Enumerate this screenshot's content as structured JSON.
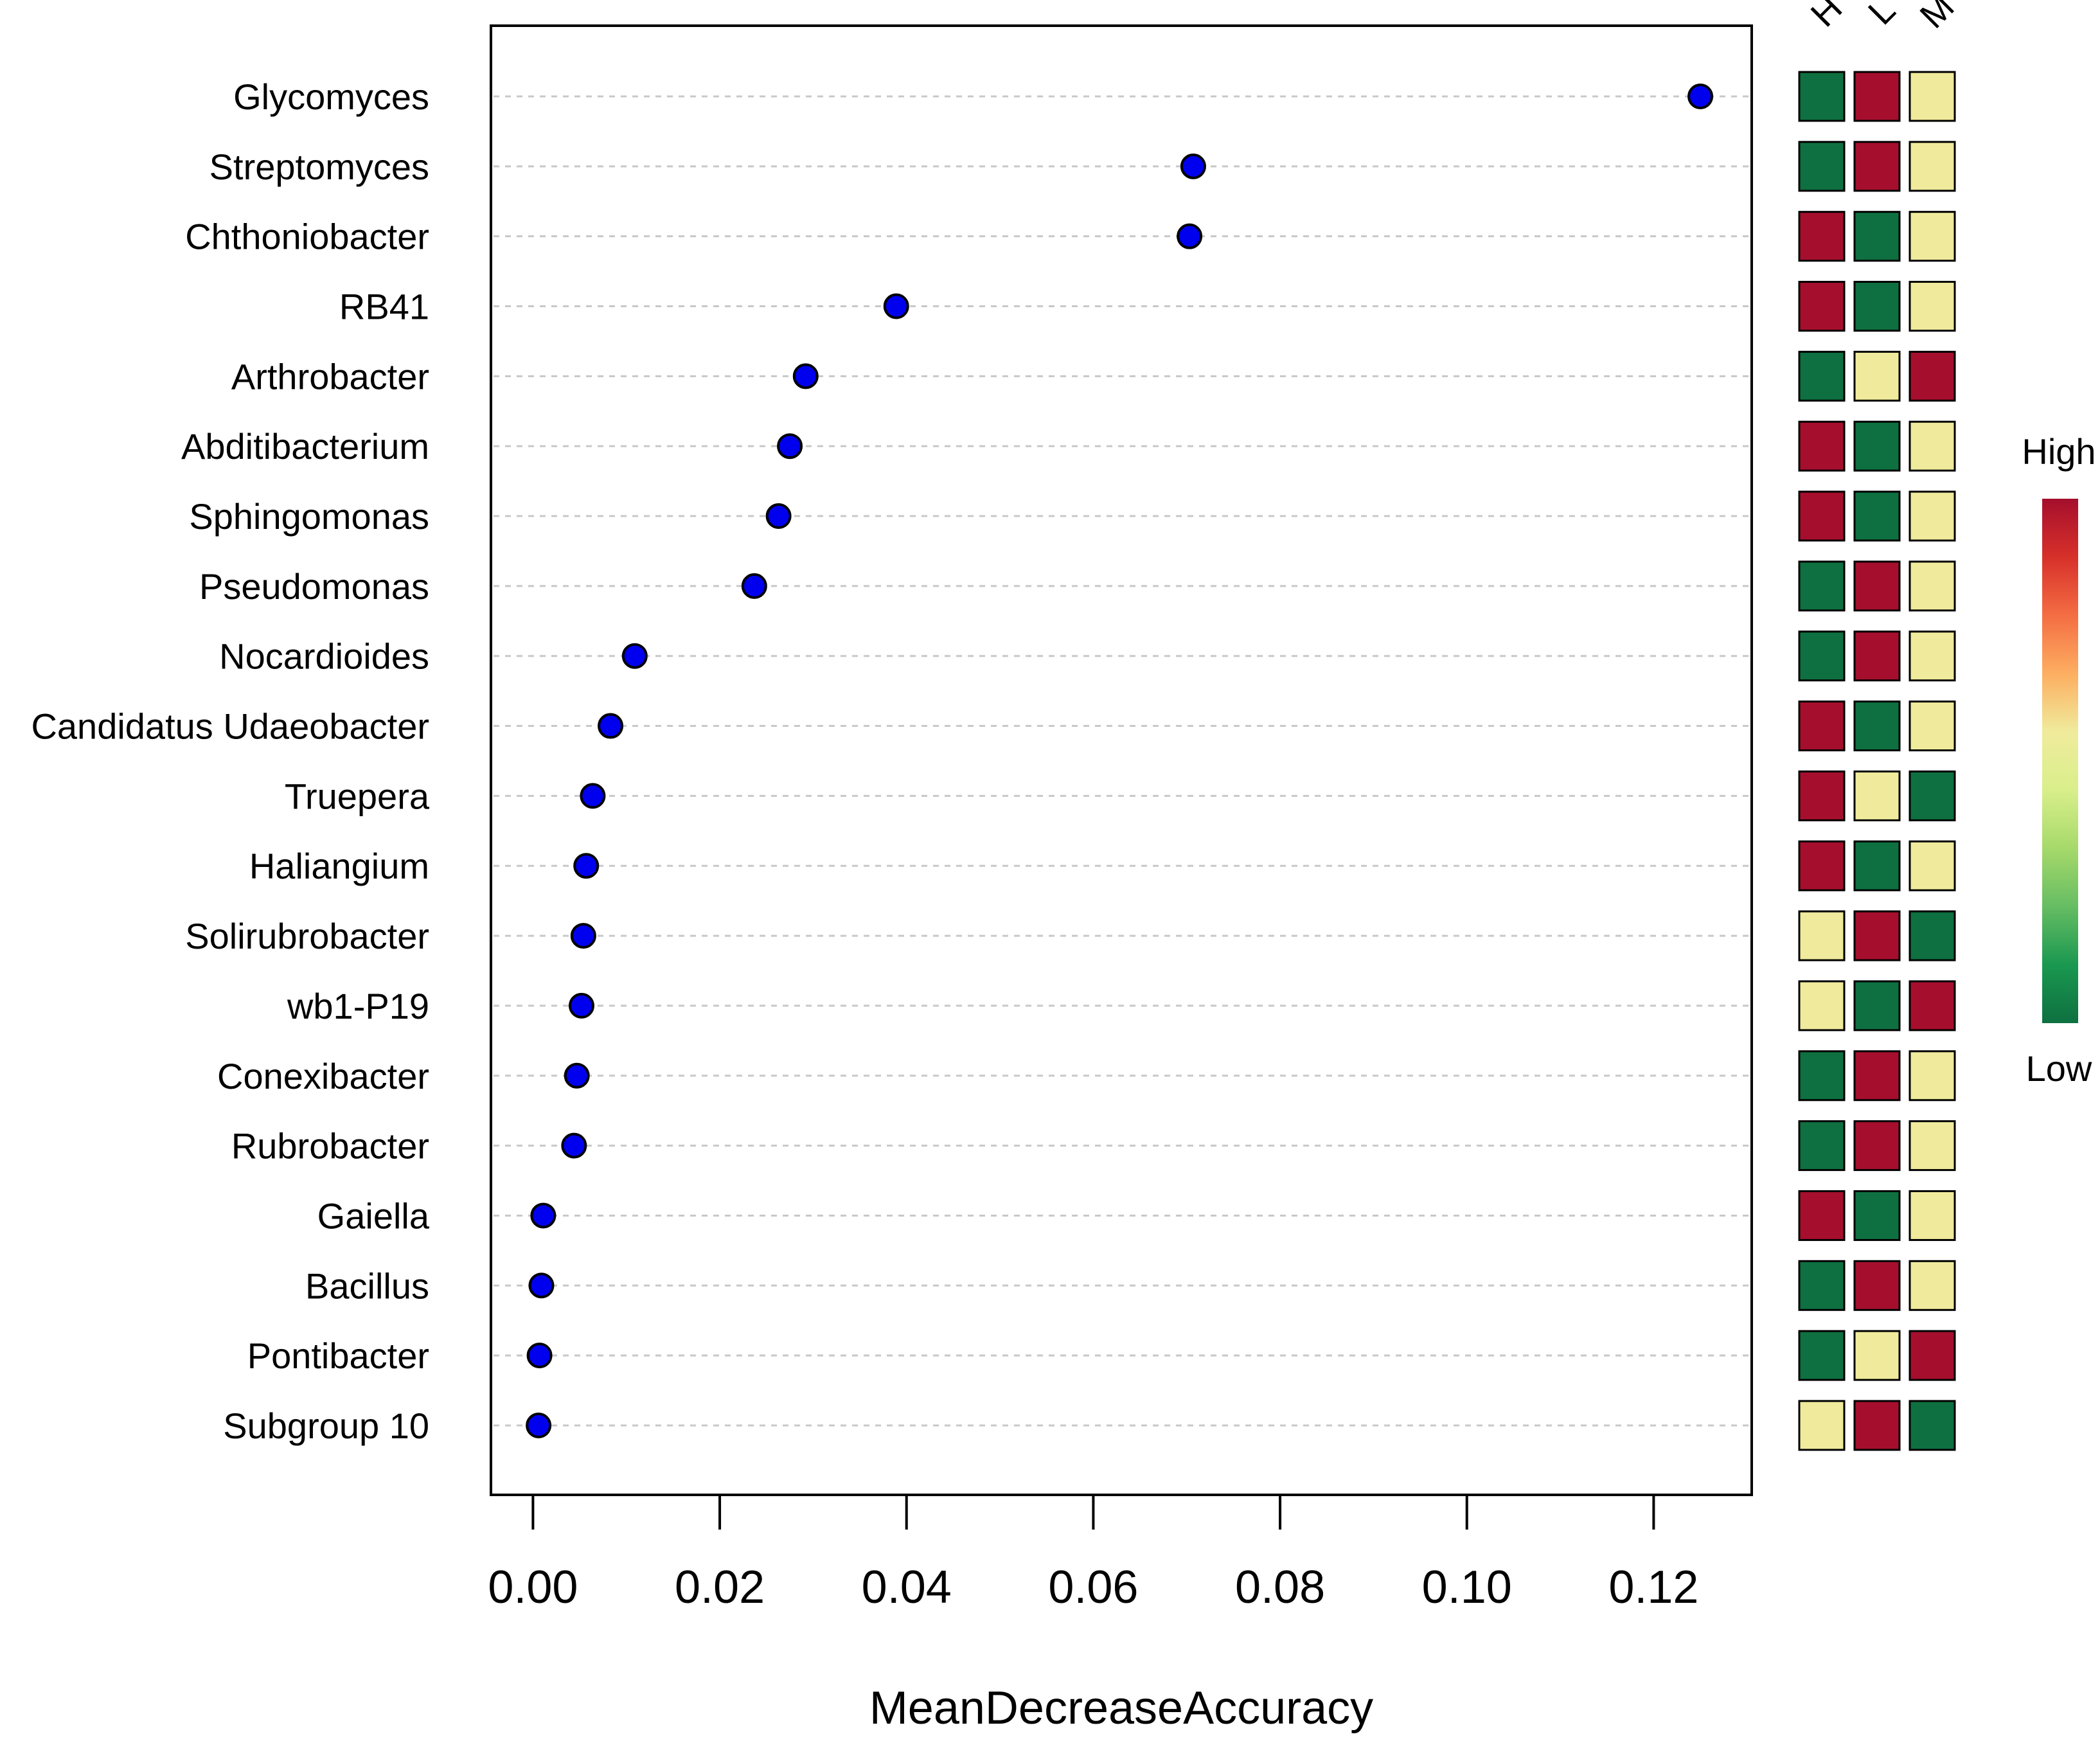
{
  "chart_data": {
    "type": "scatter",
    "subtype": "dot-plot-with-abundance-heatmap",
    "xlabel": "MeanDecreaseAccuracy",
    "ylabel": "",
    "xlim": [
      -0.0045,
      0.1305
    ],
    "x_ticks": [
      0.0,
      0.02,
      0.04,
      0.06,
      0.08,
      0.1,
      0.12
    ],
    "x_tick_labels": [
      "0.00",
      "0.02",
      "0.04",
      "0.06",
      "0.08",
      "0.10",
      "0.12"
    ],
    "grid": "horizontal-dotted",
    "point_color": "#0000ee",
    "categories": [
      "Glycomyces",
      "Streptomyces",
      "Chthoniobacter",
      "RB41",
      "Arthrobacter",
      "Abditibacterium",
      "Sphingomonas",
      "Pseudomonas",
      "Nocardioides",
      "Candidatus Udaeobacter",
      "Truepera",
      "Haliangium",
      "Solirubrobacter",
      "wb1-P19",
      "Conexibacter",
      "Rubrobacter",
      "Gaiella",
      "Bacillus",
      "Pontibacter",
      "Subgroup 10"
    ],
    "values": [
      0.125,
      0.0707,
      0.0703,
      0.0389,
      0.0292,
      0.0275,
      0.0263,
      0.0237,
      0.0109,
      0.0083,
      0.0064,
      0.0057,
      0.0054,
      0.0052,
      0.0047,
      0.0044,
      0.0011,
      0.0009,
      0.0007,
      0.0006
    ],
    "heatmap": {
      "columns": [
        "H",
        "L",
        "M"
      ],
      "levels": {
        "high": "#a50f2d",
        "mid": "#f0eb9c",
        "low": "#0e7040"
      },
      "rows": [
        [
          "low",
          "high",
          "mid"
        ],
        [
          "low",
          "high",
          "mid"
        ],
        [
          "high",
          "low",
          "mid"
        ],
        [
          "high",
          "low",
          "mid"
        ],
        [
          "low",
          "mid",
          "high"
        ],
        [
          "high",
          "low",
          "mid"
        ],
        [
          "high",
          "low",
          "mid"
        ],
        [
          "low",
          "high",
          "mid"
        ],
        [
          "low",
          "high",
          "mid"
        ],
        [
          "high",
          "low",
          "mid"
        ],
        [
          "high",
          "mid",
          "low"
        ],
        [
          "high",
          "low",
          "mid"
        ],
        [
          "mid",
          "high",
          "low"
        ],
        [
          "mid",
          "low",
          "high"
        ],
        [
          "low",
          "high",
          "mid"
        ],
        [
          "low",
          "high",
          "mid"
        ],
        [
          "high",
          "low",
          "mid"
        ],
        [
          "low",
          "high",
          "mid"
        ],
        [
          "low",
          "mid",
          "high"
        ],
        [
          "mid",
          "high",
          "low"
        ]
      ]
    },
    "legend": {
      "position": "right",
      "high_label": "High",
      "low_label": "Low",
      "gradient_colors": [
        "#a50f2d",
        "#d7302a",
        "#f46d43",
        "#fdae61",
        "#f0eb9c",
        "#d9ef8b",
        "#a6d96a",
        "#66bd63",
        "#1a9850",
        "#0e7040"
      ]
    }
  }
}
